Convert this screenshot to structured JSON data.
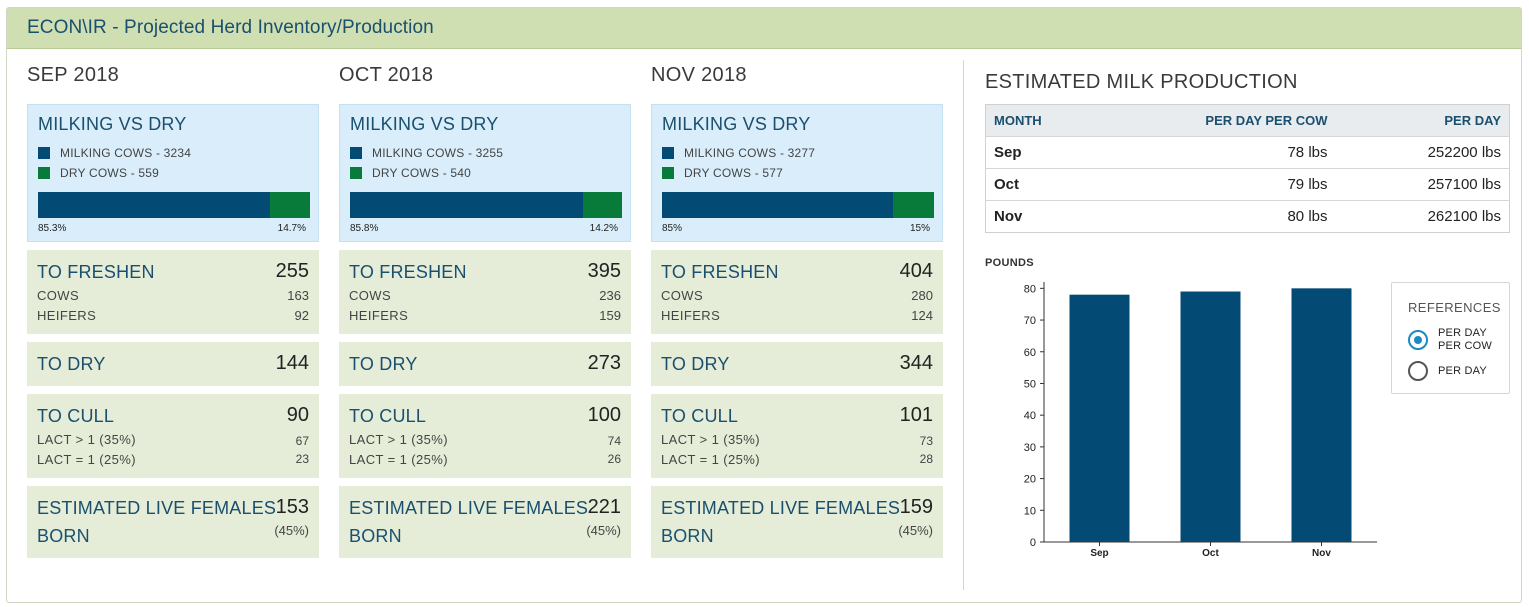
{
  "header": {
    "title": "ECON\\IR - Projected Herd Inventory/Production"
  },
  "colors": {
    "milking": "#034a74",
    "dry": "#087b3a",
    "chart_bar": "#034a74"
  },
  "months": [
    {
      "title": "SEP 2018",
      "milking_vs_dry": {
        "title": "MILKING VS DRY",
        "milking_label": "MILKING COWS - 3234",
        "dry_label": "DRY COWS - 559",
        "milking_pct": 85.3,
        "milking_pct_label": "85.3%",
        "dry_pct_label": "14.7%"
      },
      "to_freshen": {
        "title": "TO FRESHEN",
        "value": "255",
        "cows_label": "COWS",
        "cows": "163",
        "heifers_label": "HEIFERS",
        "heifers": "92"
      },
      "to_dry": {
        "title": "TO DRY",
        "value": "144"
      },
      "to_cull": {
        "title": "TO CULL",
        "value": "90",
        "lact_gt1_label": "LACT > 1 (35%)",
        "lact_gt1": "67",
        "lact_eq1_label": "LACT = 1 (25%)",
        "lact_eq1": "23"
      },
      "live_females": {
        "title_line1": "ESTIMATED LIVE FEMALES",
        "title_line2": "BORN",
        "value": "153",
        "pct": "(45%)"
      }
    },
    {
      "title": "OCT 2018",
      "milking_vs_dry": {
        "title": "MILKING VS DRY",
        "milking_label": "MILKING COWS - 3255",
        "dry_label": "DRY COWS - 540",
        "milking_pct": 85.8,
        "milking_pct_label": "85.8%",
        "dry_pct_label": "14.2%"
      },
      "to_freshen": {
        "title": "TO FRESHEN",
        "value": "395",
        "cows_label": "COWS",
        "cows": "236",
        "heifers_label": "HEIFERS",
        "heifers": "159"
      },
      "to_dry": {
        "title": "TO DRY",
        "value": "273"
      },
      "to_cull": {
        "title": "TO CULL",
        "value": "100",
        "lact_gt1_label": "LACT > 1 (35%)",
        "lact_gt1": "74",
        "lact_eq1_label": "LACT = 1 (25%)",
        "lact_eq1": "26"
      },
      "live_females": {
        "title_line1": "ESTIMATED LIVE FEMALES",
        "title_line2": "BORN",
        "value": "221",
        "pct": "(45%)"
      }
    },
    {
      "title": "NOV 2018",
      "milking_vs_dry": {
        "title": "MILKING VS DRY",
        "milking_label": "MILKING COWS - 3277",
        "dry_label": "DRY COWS - 577",
        "milking_pct": 85,
        "milking_pct_label": "85%",
        "dry_pct_label": "15%"
      },
      "to_freshen": {
        "title": "TO FRESHEN",
        "value": "404",
        "cows_label": "COWS",
        "cows": "280",
        "heifers_label": "HEIFERS",
        "heifers": "124"
      },
      "to_dry": {
        "title": "TO DRY",
        "value": "344"
      },
      "to_cull": {
        "title": "TO CULL",
        "value": "101",
        "lact_gt1_label": "LACT > 1 (35%)",
        "lact_gt1": "73",
        "lact_eq1_label": "LACT = 1 (25%)",
        "lact_eq1": "28"
      },
      "live_females": {
        "title_line1": "ESTIMATED LIVE FEMALES",
        "title_line2": "BORN",
        "value": "159",
        "pct": "(45%)"
      }
    }
  ],
  "milk_production": {
    "title": "ESTIMATED MILK PRODUCTION",
    "columns": [
      "MONTH",
      "PER DAY PER COW",
      "PER DAY"
    ],
    "rows": [
      [
        "Sep",
        "78 lbs",
        "252200 lbs"
      ],
      [
        "Oct",
        "79 lbs",
        "257100 lbs"
      ],
      [
        "Nov",
        "80 lbs",
        "262100 lbs"
      ]
    ]
  },
  "references": {
    "title": "REFERENCES",
    "options": [
      {
        "label_line1": "PER DAY",
        "label_line2": "PER COW",
        "selected": true
      },
      {
        "label_line1": "PER DAY",
        "label_line2": "",
        "selected": false
      }
    ]
  },
  "chart_data": {
    "type": "bar",
    "categories": [
      "Sep",
      "Oct",
      "Nov"
    ],
    "values": [
      78,
      79,
      80
    ],
    "ylabel": "POUNDS",
    "xlabel": "",
    "ylim": [
      0,
      82
    ],
    "yticks": [
      0,
      10,
      20,
      30,
      40,
      50,
      60,
      70,
      80
    ],
    "grid": false,
    "legend": "none"
  }
}
